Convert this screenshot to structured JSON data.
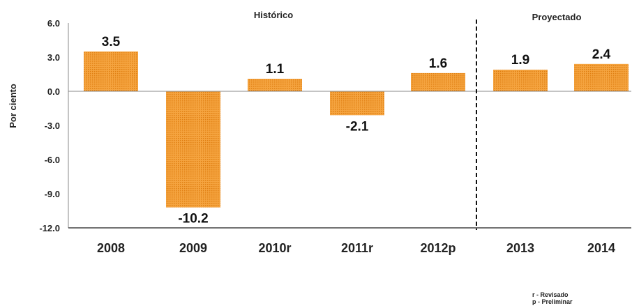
{
  "chart_data": {
    "type": "bar",
    "categories": [
      "2008",
      "2009",
      "2010r",
      "2011r",
      "2012p",
      "2013",
      "2014"
    ],
    "values": [
      3.5,
      -10.2,
      1.1,
      -2.1,
      1.6,
      1.9,
      2.4
    ],
    "value_labels": [
      "3.5",
      "-10.2",
      "1.1",
      "-2.1",
      "1.6",
      "1.9",
      "2.4"
    ],
    "ylabel": "Por ciento",
    "ylim": [
      -12.0,
      6.0
    ],
    "yticks": [
      "6.0",
      "3.0",
      "0.0",
      "-3.0",
      "-6.0",
      "-9.0",
      "-12.0"
    ],
    "section_labels": [
      "Histórico",
      "Proyectado"
    ],
    "bar_color": "#f39a2b",
    "bar_dot_color": "#e07f12",
    "grid": false,
    "legend": "none"
  },
  "notes": [
    "r -  Revisado",
    "p - Preliminar"
  ]
}
